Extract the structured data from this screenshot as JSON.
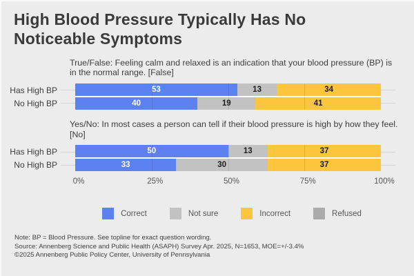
{
  "title": "High Blood Pressure Typically Has No Noticeable Symptoms",
  "colors": {
    "correct": "#5b82f0",
    "not_sure": "#c2c2c2",
    "incorrect": "#fbc53d",
    "refused": "#ababab",
    "background": "#ececec"
  },
  "chart_data": [
    {
      "type": "bar",
      "orientation": "horizontal",
      "stacked": true,
      "question": "True/False: Feeling calm and relaxed is an indication that your blood pressure (BP) is in the normal range. [False]",
      "categories": [
        "Has High BP",
        "No High BP"
      ],
      "series": [
        {
          "name": "Correct",
          "values": [
            53,
            40
          ]
        },
        {
          "name": "Not sure",
          "values": [
            13,
            19
          ]
        },
        {
          "name": "Incorrect",
          "values": [
            34,
            41
          ]
        }
      ],
      "xlim": [
        0,
        100
      ],
      "grid": "vertical at 25/50/75"
    },
    {
      "type": "bar",
      "orientation": "horizontal",
      "stacked": true,
      "question": "Yes/No: In most cases a person can tell if their blood pressure is high by how they feel. [No]",
      "categories": [
        "Has High BP",
        "No High BP"
      ],
      "series": [
        {
          "name": "Correct",
          "values": [
            50,
            33
          ]
        },
        {
          "name": "Not sure",
          "values": [
            13,
            30
          ]
        },
        {
          "name": "Incorrect",
          "values": [
            37,
            37
          ]
        }
      ],
      "xlim": [
        0,
        100
      ],
      "grid": "vertical at 25/50/75"
    }
  ],
  "axis": {
    "ticks": [
      "0%",
      "25%",
      "50%",
      "75%",
      "100%"
    ]
  },
  "legend": [
    {
      "label": "Correct",
      "color": "#5b82f0"
    },
    {
      "label": "Not sure",
      "color": "#c2c2c2"
    },
    {
      "label": "Incorrect",
      "color": "#fbc53d"
    },
    {
      "label": "Refused",
      "color": "#ababab"
    }
  ],
  "notes": [
    "Note: BP = Blood Pressure. See topline for exact question wording.",
    "Source: Annenberg Science and Public Health (ASAPH) Survey Apr. 2025, N=1653, MOE=+/-3.4%",
    "©2025 Annenberg Public Policy Center, University of Pennsylvania"
  ]
}
